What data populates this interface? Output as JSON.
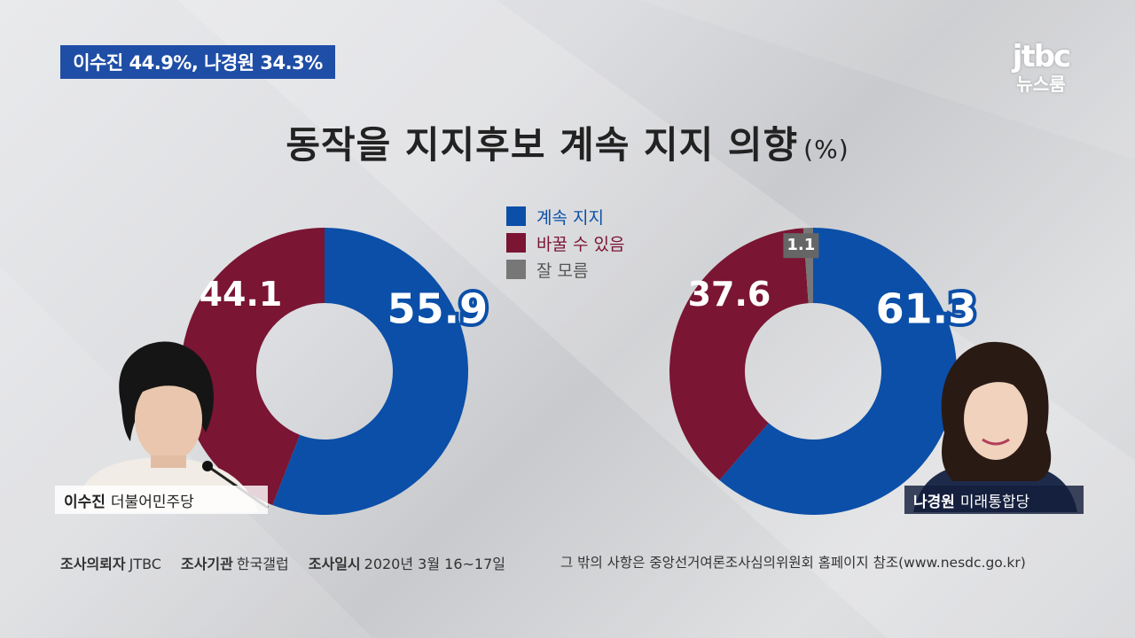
{
  "headline": "이수진 44.9%, 나경원 34.3%",
  "logo": {
    "main": "jtbc",
    "sub": "뉴스룸"
  },
  "title": {
    "text": "동작을 지지후보 계속 지지 의향",
    "unit": "(%)"
  },
  "colors": {
    "keep": "#0b4fa8",
    "change": "#7a1533",
    "unsure": "#777777",
    "headline_bg": "#1f4ea6"
  },
  "chart_data": [
    {
      "type": "pie",
      "variant": "donut",
      "categories": [
        "계속 지지",
        "바꿀 수 있음",
        "잘 모름"
      ],
      "values": [
        55.9,
        44.1,
        0
      ],
      "candidate": "이수진",
      "party": "더불어민주당"
    },
    {
      "type": "pie",
      "variant": "donut",
      "categories": [
        "계속 지지",
        "바꿀 수 있음",
        "잘 모름"
      ],
      "values": [
        61.3,
        37.6,
        1.1
      ],
      "candidate": "나경원",
      "party": "미래통합당"
    }
  ],
  "legend": [
    {
      "label": "계속 지지",
      "color": "#0b4fa8"
    },
    {
      "label": "바꿀 수 있음",
      "color": "#7a1533"
    },
    {
      "label": "잘 모름",
      "color": "#777777"
    }
  ],
  "footer": {
    "client_label": "조사의뢰자",
    "client_value": "JTBC",
    "agency_label": "조사기관",
    "agency_value": "한국갤럽",
    "date_label": "조사일시",
    "date_value": "2020년 3월 16~17일",
    "note": "그 밖의 사항은 중앙선거여론조사심의위원회 홈페이지 참조(www.nesdc.go.kr)"
  }
}
